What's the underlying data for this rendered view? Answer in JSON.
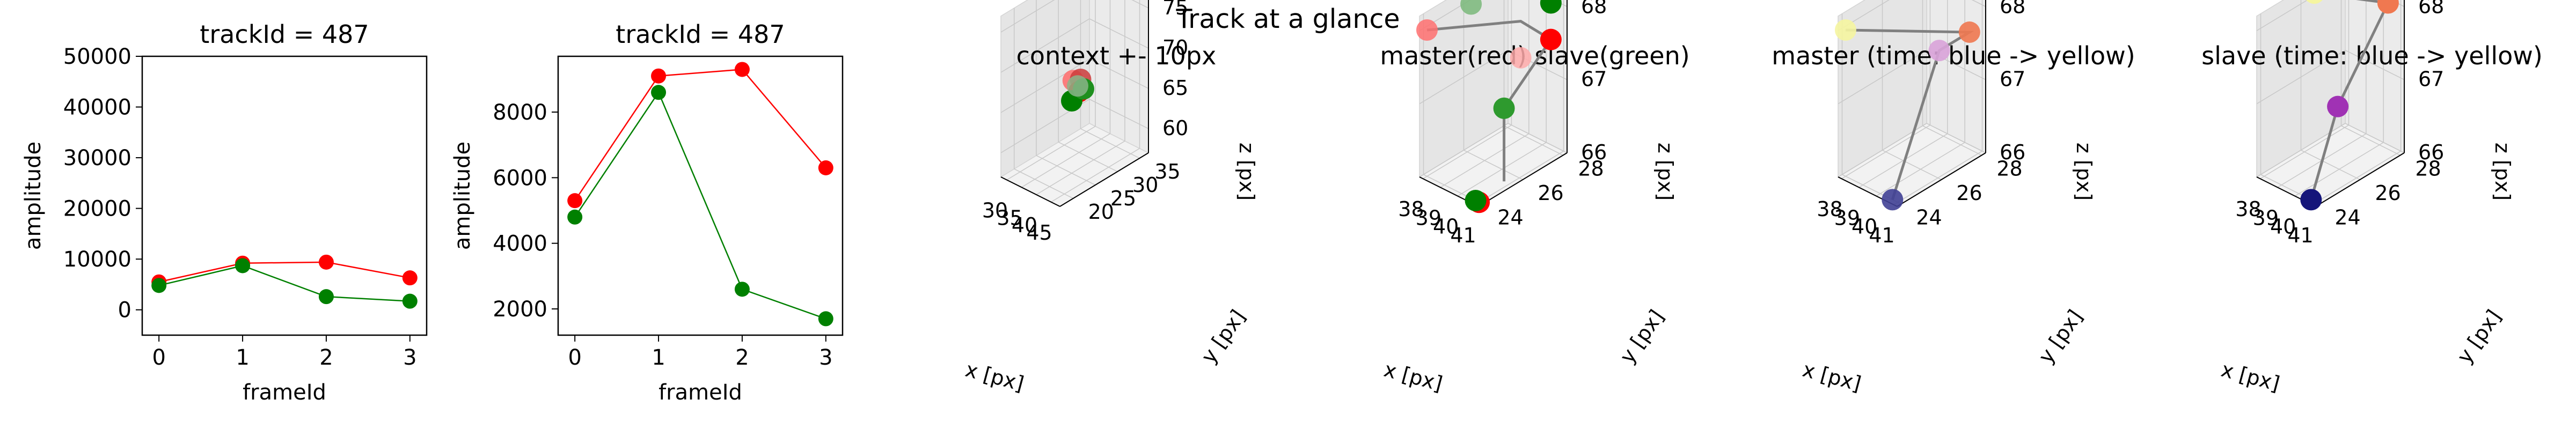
{
  "figure": {
    "suptitle": "Track at a glance"
  },
  "chart_data": [
    {
      "type": "line",
      "title": "trackId = 487",
      "xlabel": "frameId",
      "ylabel": "amplitude",
      "xlim": [
        -0.2,
        3.2
      ],
      "ylim": [
        -5000,
        50000
      ],
      "x": [
        0,
        1,
        2,
        3
      ],
      "xticks": [
        "0",
        "1",
        "2",
        "3"
      ],
      "yticks": [
        "0",
        "10000",
        "20000",
        "30000",
        "40000",
        "50000"
      ],
      "series": [
        {
          "name": "",
          "color": "#ff0000",
          "values": [
            5500,
            9200,
            9400,
            6300
          ]
        },
        {
          "name": "",
          "color": "#008000",
          "values": [
            4800,
            8700,
            2600,
            1700
          ]
        }
      ]
    },
    {
      "type": "line",
      "title": "trackId = 487",
      "xlabel": "frameId",
      "ylabel": "amplitude",
      "xlim": [
        -0.2,
        3.2
      ],
      "ylim": [
        1200,
        9700
      ],
      "x": [
        0,
        1,
        2,
        3
      ],
      "xticks": [
        "0",
        "1",
        "2",
        "3"
      ],
      "yticks": [
        "2000",
        "4000",
        "6000",
        "8000"
      ],
      "series": [
        {
          "name": "",
          "color": "#ff0000",
          "values": [
            5300,
            9100,
            9300,
            6300
          ]
        },
        {
          "name": "",
          "color": "#008000",
          "values": [
            4800,
            8600,
            2600,
            1700
          ]
        }
      ]
    },
    {
      "type": "scatter",
      "title": "context +- 10px",
      "xlabel": "x [px]",
      "ylabel": "y [px]",
      "zlabel": "z [px]",
      "xlim": [
        28,
        48
      ],
      "ylim": [
        17,
        37
      ],
      "zlim": [
        57,
        77
      ],
      "xticks": [
        30,
        35,
        40,
        45
      ],
      "yticks": [
        20,
        25,
        30,
        35
      ],
      "zticks": [
        60,
        65,
        70,
        75
      ],
      "path": [],
      "points": [
        {
          "x": 39,
          "y": 26,
          "z": 68,
          "color": "#ff6b6b",
          "alpha": 0.85
        },
        {
          "x": 40,
          "y": 27,
          "z": 68,
          "color": "#cc3b3b",
          "alpha": 0.85
        },
        {
          "x": 41,
          "y": 26,
          "z": 67,
          "color": "#ff0000",
          "alpha": 1
        },
        {
          "x": 40,
          "y": 25,
          "z": 66,
          "color": "#008000",
          "alpha": 1
        },
        {
          "x": 41,
          "y": 27,
          "z": 67,
          "color": "#1e8f1e",
          "alpha": 1
        },
        {
          "x": 39,
          "y": 27,
          "z": 67,
          "color": "#8ab58a",
          "alpha": 0.85
        }
      ]
    },
    {
      "type": "scatter",
      "title": "master(red) slave(green)",
      "xlabel": "x [px]",
      "ylabel": "y [px]",
      "zlabel": "z [px]",
      "xlim": [
        37.8,
        41.2
      ],
      "ylim": [
        23.8,
        28.2
      ],
      "zlim": [
        66,
        68.2
      ],
      "xticks": [
        38,
        39,
        40,
        41
      ],
      "yticks": [
        24,
        26,
        28
      ],
      "zticks": [
        66,
        67,
        68
      ],
      "path": [
        {
          "x": 38,
          "y": 24,
          "z": 68
        },
        {
          "x": 40.5,
          "y": 26.5,
          "z": 68
        },
        {
          "x": 40.5,
          "y": 28,
          "z": 67.5
        },
        {
          "x": 40.7,
          "y": 25.5,
          "z": 67
        },
        {
          "x": 40.7,
          "y": 25.5,
          "z": 66
        }
      ],
      "points": [
        {
          "x": 38,
          "y": 24,
          "z": 68,
          "color": "#ff7070",
          "alpha": 0.85
        },
        {
          "x": 38.8,
          "y": 25.5,
          "z": 68.2,
          "color": "#7ab87a",
          "alpha": 0.85
        },
        {
          "x": 40.5,
          "y": 28,
          "z": 68,
          "color": "#008000",
          "alpha": 1
        },
        {
          "x": 40.5,
          "y": 28,
          "z": 67.5,
          "color": "#ff0000",
          "alpha": 1
        },
        {
          "x": 40.5,
          "y": 26.5,
          "z": 67.5,
          "color": "#ffaaaa",
          "alpha": 0.85
        },
        {
          "x": 40.7,
          "y": 25.5,
          "z": 67,
          "color": "#2e9a2e",
          "alpha": 1
        },
        {
          "x": 41,
          "y": 24,
          "z": 66,
          "color": "#ff0000",
          "alpha": 1
        },
        {
          "x": 40.8,
          "y": 24,
          "z": 66,
          "color": "#008000",
          "alpha": 1
        }
      ]
    },
    {
      "type": "scatter",
      "title": "master (time: blue -> yellow)",
      "xlabel": "x [px]",
      "ylabel": "y [px]",
      "zlabel": "z [px]",
      "xlim": [
        37.8,
        41.2
      ],
      "ylim": [
        23.8,
        28.2
      ],
      "zlim": [
        66,
        68.2
      ],
      "xticks": [
        38,
        39,
        40,
        41
      ],
      "yticks": [
        24,
        26,
        28
      ],
      "zticks": [
        66,
        67,
        68
      ],
      "path": [
        {
          "x": 40.7,
          "y": 24,
          "z": 66
        },
        {
          "x": 40.5,
          "y": 26.5,
          "z": 67.6
        },
        {
          "x": 40.5,
          "y": 28,
          "z": 67.6
        },
        {
          "x": 38,
          "y": 24,
          "z": 68
        }
      ],
      "points": [
        {
          "x": 40.7,
          "y": 24,
          "z": 66,
          "color": "#404095",
          "alpha": 0.9
        },
        {
          "x": 40.5,
          "y": 26.5,
          "z": 67.6,
          "color": "#d9a3d9",
          "alpha": 0.9
        },
        {
          "x": 40.5,
          "y": 28,
          "z": 67.6,
          "color": "#f07850",
          "alpha": 0.9
        },
        {
          "x": 38,
          "y": 24,
          "z": 68,
          "color": "#f5f5a0",
          "alpha": 0.9
        }
      ]
    },
    {
      "type": "scatter",
      "title": "slave (time: blue -> yellow)",
      "xlabel": "x [px]",
      "ylabel": "y [px]",
      "zlabel": "z [px]",
      "xlim": [
        37.8,
        41.2
      ],
      "ylim": [
        23.8,
        28.2
      ],
      "zlim": [
        66,
        68.2
      ],
      "xticks": [
        38,
        39,
        40,
        41
      ],
      "yticks": [
        24,
        26,
        28
      ],
      "zticks": [
        66,
        67,
        68
      ],
      "path": [
        {
          "x": 40.7,
          "y": 24,
          "z": 66
        },
        {
          "x": 40.5,
          "y": 25.5,
          "z": 67
        },
        {
          "x": 40.5,
          "y": 28,
          "z": 68
        },
        {
          "x": 38.8,
          "y": 25.8,
          "z": 68.3
        }
      ],
      "points": [
        {
          "x": 40.7,
          "y": 24,
          "z": 66,
          "color": "#15157a",
          "alpha": 1
        },
        {
          "x": 40.5,
          "y": 25.5,
          "z": 67,
          "color": "#a032b4",
          "alpha": 1
        },
        {
          "x": 40.5,
          "y": 28,
          "z": 68,
          "color": "#f07850",
          "alpha": 1
        },
        {
          "x": 38.8,
          "y": 25.8,
          "z": 68.3,
          "color": "#f5f5a0",
          "alpha": 1
        }
      ]
    }
  ]
}
